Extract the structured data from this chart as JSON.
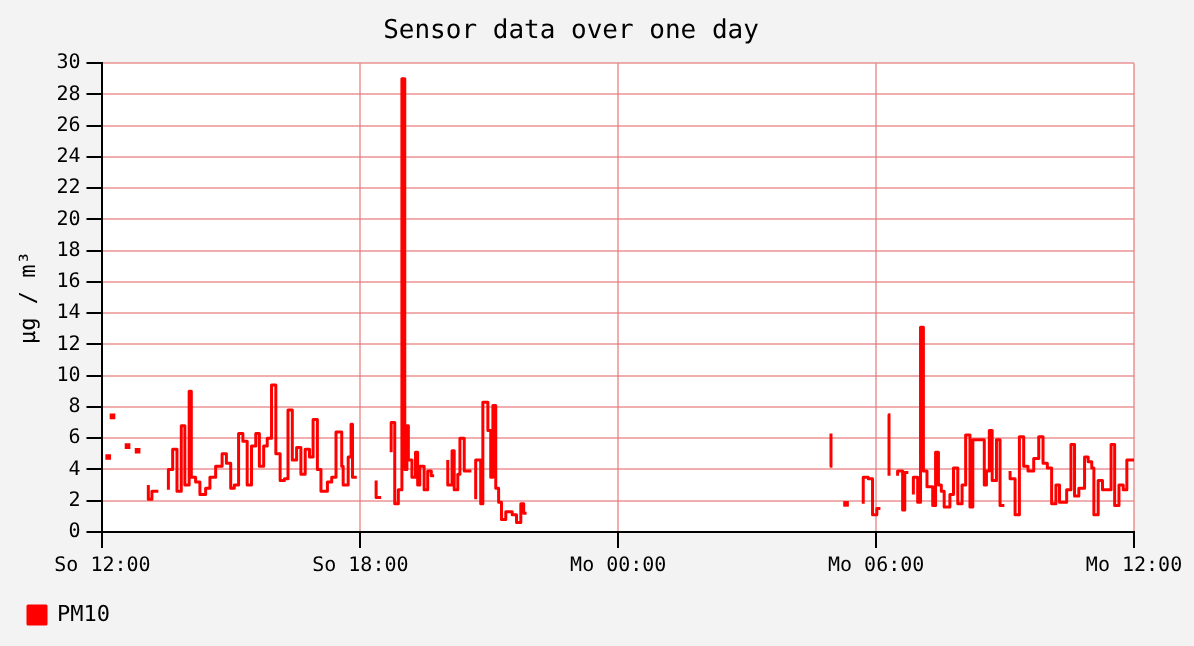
{
  "chart_data": {
    "type": "step",
    "title": "Sensor data over one day",
    "ylabel": "µg / m³",
    "xlim": [
      "--01-01T12:00",
      "--01-02T12:00"
    ],
    "xticks": [
      {
        "value": "--01-01T12:00",
        "label": "So 12:00"
      },
      {
        "value": "--01-01T18:00",
        "label": "So 18:00"
      },
      {
        "value": "--01-02T00:00",
        "label": "Mo 00:00"
      },
      {
        "value": "--01-02T06:00",
        "label": "Mo 06:00"
      },
      {
        "value": "--01-02T12:00",
        "label": "Mo 12:00"
      }
    ],
    "ylim": [
      0,
      30
    ],
    "yticks": [
      0,
      2,
      4,
      6,
      8,
      10,
      12,
      14,
      16,
      18,
      20,
      22,
      24,
      26,
      28,
      30
    ],
    "grid": true,
    "legend": "bottom left",
    "series": [
      {
        "name": "PM10",
        "color": "#ff0000",
        "x": [
          "--01-01T12:08",
          "--01-01T12:13",
          "--01-01T12:14",
          "--01-01T12:19",
          "--01-01T12:35",
          "--01-01T12:42",
          "--01-01T12:49",
          "--01-01T12:53",
          "--01-01T13:04",
          "--01-01T13:09",
          "--01-01T13:18",
          "--01-01T13:26",
          "--01-01T13:32",
          "--01-01T13:38",
          "--01-01T13:44",
          "--01-01T13:50",
          "--01-01T13:55",
          "--01-01T14:01",
          "--01-01T14:04",
          "--01-01T14:10",
          "--01-01T14:16",
          "--01-01T14:24",
          "--01-01T14:30",
          "--01-01T14:38",
          "--01-01T14:47",
          "--01-01T14:53",
          "--01-01T14:59",
          "--01-01T15:04",
          "--01-01T15:10",
          "--01-01T15:16",
          "--01-01T15:22",
          "--01-01T15:28",
          "--01-01T15:34",
          "--01-01T15:39",
          "--01-01T15:45",
          "--01-01T15:50",
          "--01-01T15:56",
          "--01-01T16:02",
          "--01-01T16:08",
          "--01-01T16:14",
          "--01-01T16:19",
          "--01-01T16:25",
          "--01-01T16:31",
          "--01-01T16:37",
          "--01-01T16:43",
          "--01-01T16:49",
          "--01-01T16:54",
          "--01-01T17:00",
          "--01-01T17:05",
          "--01-01T17:14",
          "--01-01T17:20",
          "--01-01T17:26",
          "--01-01T17:34",
          "--01-01T17:36",
          "--01-01T17:43",
          "--01-01T17:47",
          "--01-01T17:49",
          "--01-01T17:55",
          "--01-01T18:03",
          "--01-01T18:22",
          "--01-01T18:29",
          "--01-01T18:34",
          "--01-01T18:43",
          "--01-01T18:48",
          "--01-01T18:53",
          "--01-01T18:58",
          "--01-01T19:02",
          "--01-01T19:05",
          "--01-01T19:07",
          "--01-01T19:12",
          "--01-01T19:17",
          "--01-01T19:20",
          "--01-01T19:23",
          "--01-01T19:29",
          "--01-01T19:34",
          "--01-01T19:39",
          "--01-01T19:43",
          "--01-01T19:50",
          "--01-01T20:02",
          "--01-01T20:08",
          "--01-01T20:11",
          "--01-01T20:16",
          "--01-01T20:19",
          "--01-01T20:25",
          "--01-01T20:35",
          "--01-01T20:40",
          "--01-01T20:41",
          "--01-01T20:48",
          "--01-01T20:51",
          "--01-01T20:58",
          "--01-01T21:02",
          "--01-01T21:05",
          "--01-01T21:09",
          "--01-01T21:13",
          "--01-01T21:17",
          "--01-01T21:23",
          "--01-01T21:32",
          "--01-01T21:38",
          "--01-01T21:44",
          "--01-01T21:48",
          "--01-01T21:52",
          "--01-01T21:58",
          "--01-02T04:57",
          "--01-02T04:59",
          "--01-02T05:03",
          "--01-02T05:18",
          "--01-02T05:24",
          "--01-02T05:42",
          "--01-02T05:49",
          "--01-02T05:55",
          "--01-02T06:01",
          "--01-02T06:06",
          "--01-02T06:12",
          "--01-02T06:18",
          "--01-02T06:20",
          "--01-02T06:23",
          "--01-02T06:30",
          "--01-02T06:37",
          "--01-02T06:40",
          "--01-02T06:45",
          "--01-02T06:49",
          "--01-02T06:52",
          "--01-02T06:58",
          "--01-02T07:02",
          "--01-02T07:06",
          "--01-02T07:11",
          "--01-02T07:19",
          "--01-02T07:23",
          "--01-02T07:27",
          "--01-02T07:31",
          "--01-02T07:35",
          "--01-02T07:43",
          "--01-02T07:48",
          "--01-02T07:54",
          "--01-02T08:00",
          "--01-02T08:05",
          "--01-02T08:11",
          "--01-02T08:15",
          "--01-02T08:31",
          "--01-02T08:34",
          "--01-02T08:38",
          "--01-02T08:42",
          "--01-02T08:48",
          "--01-02T08:53",
          "--01-02T08:59",
          "--01-02T09:05",
          "--01-02T09:07",
          "--01-02T09:14",
          "--01-02T09:20",
          "--01-02T09:26",
          "--01-02T09:32",
          "--01-02T09:40",
          "--01-02T09:47",
          "--01-02T09:53",
          "--01-02T09:59",
          "--01-02T10:05",
          "--01-02T10:11",
          "--01-02T10:16",
          "--01-02T10:26",
          "--01-02T10:32",
          "--01-02T10:37",
          "--01-02T10:43",
          "--01-02T10:51",
          "--01-02T10:56",
          "--01-02T11:01",
          "--01-02T11:04",
          "--01-02T11:10",
          "--01-02T11:16",
          "--01-02T11:28",
          "--01-02T11:33",
          "--01-02T11:39",
          "--01-02T11:45",
          "--01-02T11:50",
          "--01-02T11:56",
          "--01-02T12:00"
        ],
        "values": [
          4.8,
          null,
          7.4,
          null,
          5.5,
          null,
          5.2,
          null,
          3.0,
          2.1,
          2.6,
          null,
          2.7,
          4.0,
          5.3,
          2.6,
          6.8,
          3.0,
          9.0,
          3.5,
          3.2,
          2.4,
          2.8,
          3.5,
          4.2,
          5.0,
          4.4,
          2.8,
          3.0,
          6.3,
          5.8,
          3.0,
          5.5,
          6.3,
          4.2,
          5.5,
          6.0,
          9.4,
          5.0,
          3.3,
          3.4,
          7.8,
          4.6,
          5.4,
          3.7,
          5.3,
          4.8,
          7.2,
          4.0,
          2.6,
          3.2,
          3.5,
          6.4,
          4.2,
          3.0,
          4.8,
          6.9,
          3.5,
          null,
          3.3,
          2.2,
          null,
          5.1,
          7.0,
          1.8,
          2.7,
          29.0,
          4.0,
          6.8,
          4.6,
          3.5,
          5.1,
          3.0,
          4.2,
          2.7,
          3.9,
          3.6,
          null,
          4.6,
          3.0,
          5.2,
          2.7,
          3.7,
          6.0,
          3.9,
          null,
          2.1,
          4.6,
          1.8,
          8.3,
          6.5,
          3.5,
          8.1,
          2.8,
          1.9,
          0.8,
          1.3,
          1.1,
          0.6,
          1.8,
          1.2,
          null,
          6.3,
          4.2,
          null,
          1.8,
          null,
          1.8,
          3.5,
          3.4,
          1.1,
          1.5,
          null,
          3.6,
          7.5,
          null,
          3.6,
          3.9,
          1.4,
          3.8,
          null,
          2.4,
          3.5,
          1.9,
          13.1,
          3.9,
          2.9,
          1.7,
          5.1,
          3.0,
          2.6,
          1.6,
          2.4,
          4.1,
          1.8,
          3.0,
          6.2,
          1.6,
          5.9,
          3.0,
          3.9,
          6.5,
          3.3,
          5.9,
          1.7,
          null,
          3.9,
          3.4,
          1.1,
          6.1,
          4.2,
          3.9,
          4.7,
          6.1,
          4.4,
          4.1,
          1.8,
          3.0,
          1.9,
          2.7,
          5.6,
          2.3,
          2.8,
          4.8,
          4.5,
          4.1,
          1.1,
          3.3,
          2.7,
          5.6,
          1.7,
          3.0,
          2.7,
          4.6,
          4.6
        ]
      }
    ]
  }
}
